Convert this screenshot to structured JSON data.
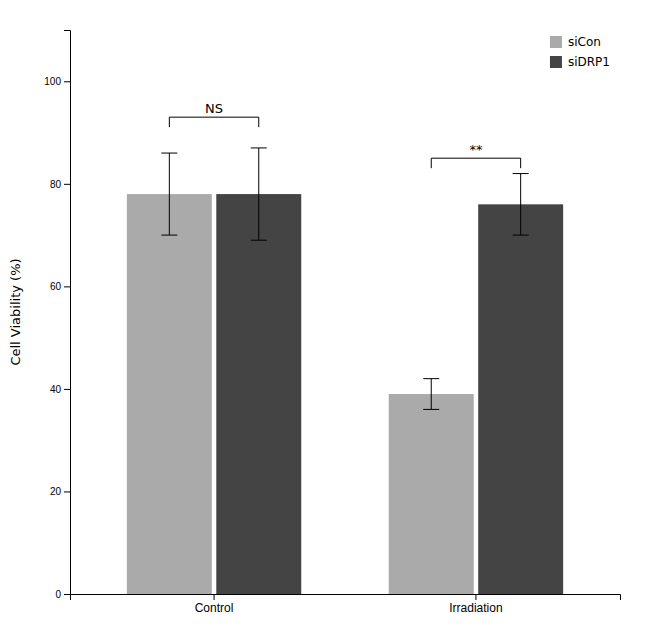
{
  "chart_data": {
    "type": "bar",
    "categories": [
      "Control",
      "Irradiation"
    ],
    "series": [
      {
        "name": "siCon",
        "color": "#aaaaaa",
        "values": [
          78,
          39
        ],
        "errors": [
          8,
          3
        ]
      },
      {
        "name": "siDRP1",
        "color": "#444444",
        "values": [
          78,
          76
        ],
        "errors": [
          9,
          6
        ]
      }
    ],
    "y_label": "Cell Viability (%)",
    "ylim": [
      0,
      110
    ],
    "yticks": [
      0,
      20,
      40,
      60,
      80,
      100
    ],
    "legend": "upper right",
    "grid": false,
    "annotations": [
      {
        "text": "NS",
        "category": 0,
        "y": 93
      },
      {
        "text": "**",
        "category": 1,
        "y": 85
      }
    ]
  }
}
